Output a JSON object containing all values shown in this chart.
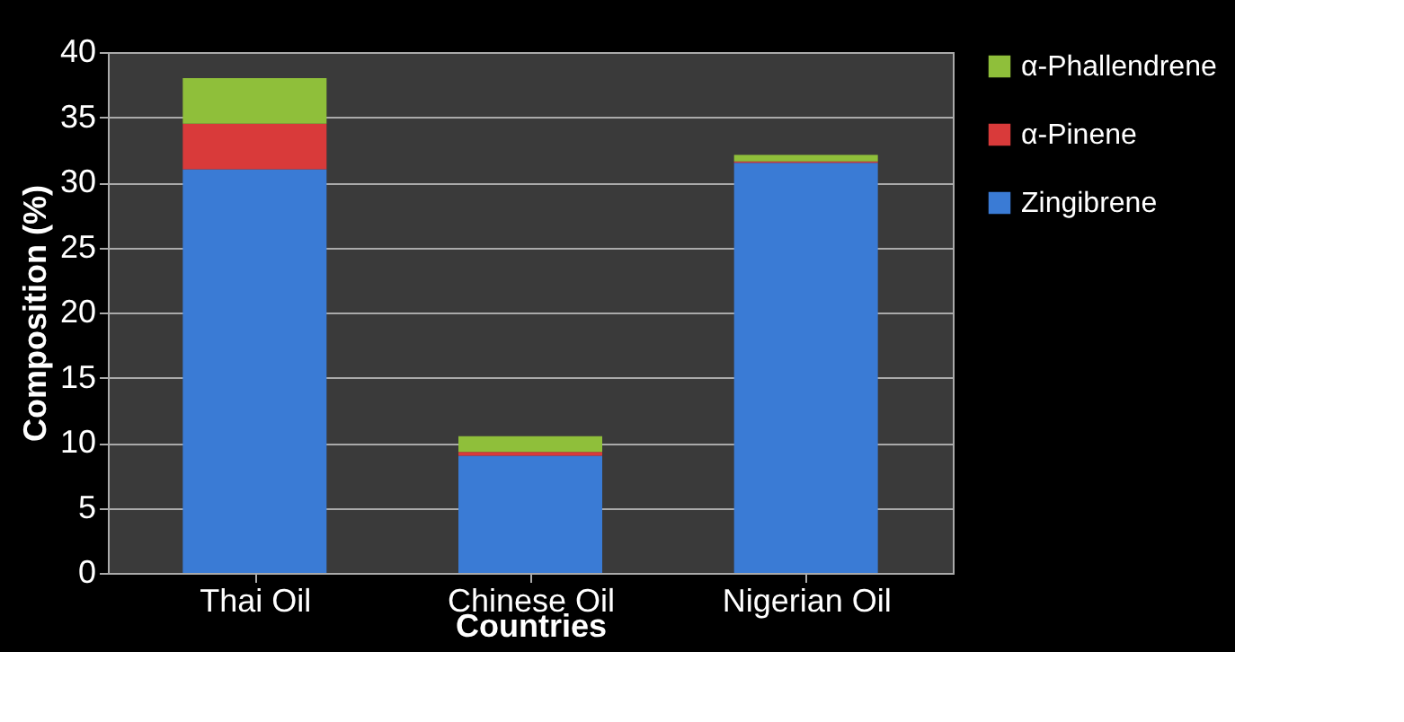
{
  "chart_data": {
    "type": "bar",
    "stacked": true,
    "xlabel": "Countries",
    "ylabel": "Composition (%)",
    "categories": [
      "Thai Oil",
      "Chinese Oil",
      "Nigerian Oil"
    ],
    "series": [
      {
        "name": "Zingibrene",
        "color": "#3a7bd5",
        "values": [
          31,
          9,
          31.5
        ]
      },
      {
        "name": "α-Pinene",
        "color": "#d93a3a",
        "values": [
          3.5,
          0.3,
          0.1
        ]
      },
      {
        "name": "α-Phallendrene",
        "color": "#8fbf3a",
        "values": [
          3.5,
          1.2,
          0.5
        ]
      }
    ],
    "ylim": [
      0,
      40
    ],
    "yticks": [
      0,
      5,
      10,
      15,
      20,
      25,
      30,
      35,
      40
    ],
    "grid": "y",
    "legend": "right"
  }
}
